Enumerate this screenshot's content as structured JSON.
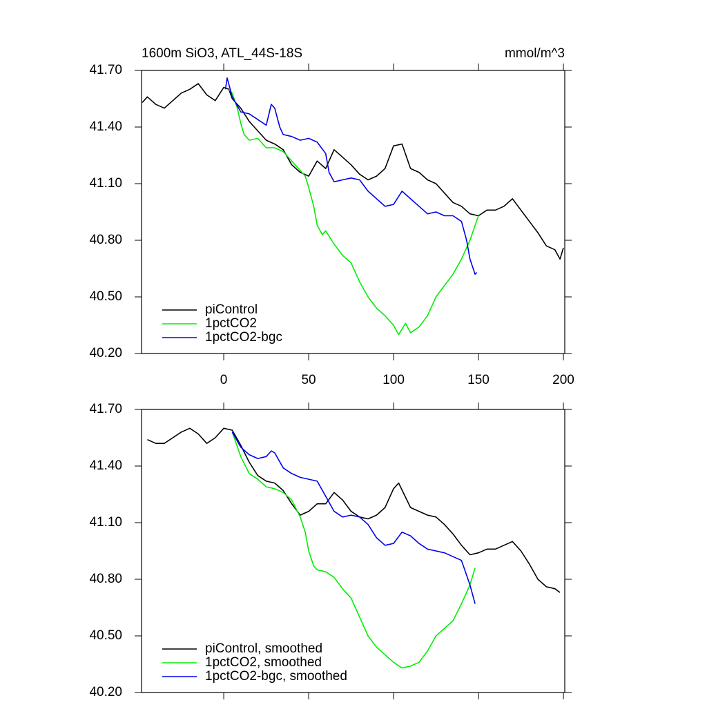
{
  "chart_data": [
    {
      "type": "line",
      "title": "1600m SiO3, ATL_44S-18S",
      "units": "mmol/m^3",
      "xlim": [
        -48.4,
        200.8
      ],
      "ylim": [
        40.2,
        41.7
      ],
      "xticks": [
        0,
        50,
        100,
        150,
        200
      ],
      "xtick_labels": true,
      "yticks": [
        {
          "value": 40.2,
          "label": "40.20"
        },
        {
          "value": 40.5,
          "label": "40.50"
        },
        {
          "value": 40.8,
          "label": "40.80"
        },
        {
          "value": 41.1,
          "label": "41.10"
        },
        {
          "value": 41.4,
          "label": "41.40"
        },
        {
          "value": 41.7,
          "label": "41.70"
        }
      ],
      "series": [
        {
          "name": "piControl",
          "color": "#000000",
          "x": [
            -48,
            -45,
            -40,
            -35,
            -30,
            -25,
            -20,
            -15,
            -10,
            -5,
            0,
            3,
            5,
            10,
            15,
            20,
            25,
            30,
            35,
            40,
            45,
            50,
            55,
            60,
            65,
            70,
            75,
            80,
            85,
            90,
            95,
            100,
            105,
            110,
            115,
            120,
            125,
            130,
            135,
            140,
            145,
            150,
            155,
            160,
            165,
            170,
            175,
            180,
            185,
            190,
            195,
            198,
            200
          ],
          "values": [
            41.53,
            41.56,
            41.52,
            41.5,
            41.54,
            41.58,
            41.6,
            41.63,
            41.57,
            41.54,
            41.61,
            41.6,
            41.55,
            41.5,
            41.43,
            41.38,
            41.33,
            41.31,
            41.28,
            41.2,
            41.16,
            41.14,
            41.22,
            41.18,
            41.28,
            41.24,
            41.2,
            41.15,
            41.12,
            41.14,
            41.18,
            41.3,
            41.31,
            41.18,
            41.16,
            41.12,
            41.1,
            41.05,
            41.0,
            40.98,
            40.94,
            40.93,
            40.96,
            40.96,
            40.98,
            41.02,
            40.96,
            40.9,
            40.84,
            40.77,
            40.75,
            40.7,
            40.76
          ]
        },
        {
          "name": "1pctCO2",
          "color": "#00ee00",
          "x": [
            3,
            5,
            8,
            10,
            12,
            15,
            20,
            25,
            30,
            35,
            40,
            45,
            48,
            50,
            53,
            55,
            58,
            60,
            65,
            70,
            75,
            80,
            85,
            90,
            95,
            100,
            103,
            107,
            110,
            115,
            120,
            125,
            130,
            135,
            140,
            145,
            150
          ],
          "values": [
            41.6,
            41.58,
            41.5,
            41.42,
            41.36,
            41.33,
            41.34,
            41.29,
            41.29,
            41.27,
            41.22,
            41.17,
            41.14,
            41.08,
            40.98,
            40.88,
            40.83,
            40.85,
            40.78,
            40.72,
            40.68,
            40.58,
            40.5,
            40.44,
            40.4,
            40.35,
            40.3,
            40.36,
            40.31,
            40.34,
            40.4,
            40.5,
            40.56,
            40.62,
            40.7,
            40.8,
            40.93
          ]
        },
        {
          "name": "1pctCO2-bgc",
          "color": "#0000ee",
          "x": [
            1,
            2,
            5,
            10,
            15,
            20,
            25,
            28,
            30,
            33,
            35,
            40,
            45,
            50,
            55,
            60,
            62,
            65,
            70,
            75,
            80,
            85,
            90,
            95,
            100,
            105,
            110,
            115,
            120,
            125,
            130,
            135,
            140,
            143,
            145,
            148,
            149
          ],
          "values": [
            41.6,
            41.66,
            41.56,
            41.48,
            41.47,
            41.44,
            41.41,
            41.52,
            41.5,
            41.4,
            41.36,
            41.35,
            41.33,
            41.34,
            41.32,
            41.26,
            41.16,
            41.11,
            41.12,
            41.13,
            41.12,
            41.06,
            41.02,
            40.98,
            40.99,
            41.06,
            41.02,
            40.98,
            40.94,
            40.95,
            40.93,
            40.93,
            40.9,
            40.8,
            40.7,
            40.62,
            40.63
          ]
        }
      ]
    },
    {
      "type": "line",
      "xlim": [
        -48.4,
        200.8
      ],
      "ylim": [
        40.2,
        41.7
      ],
      "xticks": [
        0,
        50,
        100,
        150,
        200
      ],
      "xtick_labels": false,
      "yticks": [
        {
          "value": 40.2,
          "label": "40.20"
        },
        {
          "value": 40.5,
          "label": "40.50"
        },
        {
          "value": 40.8,
          "label": "40.80"
        },
        {
          "value": 41.1,
          "label": "41.10"
        },
        {
          "value": 41.4,
          "label": "41.40"
        },
        {
          "value": 41.7,
          "label": "41.70"
        }
      ],
      "series": [
        {
          "name": "piControl, smoothed",
          "color": "#000000",
          "x": [
            -45,
            -40,
            -35,
            -30,
            -25,
            -20,
            -15,
            -10,
            -5,
            0,
            5,
            10,
            15,
            20,
            25,
            30,
            35,
            40,
            45,
            50,
            55,
            60,
            65,
            70,
            75,
            80,
            85,
            90,
            95,
            100,
            103,
            110,
            115,
            120,
            125,
            130,
            135,
            140,
            145,
            150,
            155,
            160,
            165,
            170,
            175,
            180,
            185,
            190,
            195,
            198
          ],
          "values": [
            41.54,
            41.52,
            41.52,
            41.55,
            41.58,
            41.6,
            41.57,
            41.52,
            41.55,
            41.6,
            41.59,
            41.51,
            41.42,
            41.35,
            41.32,
            41.31,
            41.27,
            41.2,
            41.14,
            41.16,
            41.2,
            41.2,
            41.26,
            41.22,
            41.16,
            41.13,
            41.12,
            41.14,
            41.18,
            41.28,
            41.31,
            41.18,
            41.16,
            41.14,
            41.13,
            41.09,
            41.04,
            40.98,
            40.93,
            40.94,
            40.96,
            40.96,
            40.98,
            41.0,
            40.95,
            40.88,
            40.8,
            40.76,
            40.75,
            40.73
          ]
        },
        {
          "name": "1pctCO2, smoothed",
          "color": "#00ee00",
          "x": [
            5,
            10,
            15,
            20,
            25,
            30,
            35,
            40,
            45,
            48,
            50,
            53,
            55,
            60,
            65,
            70,
            75,
            80,
            85,
            90,
            95,
            100,
            105,
            110,
            115,
            120,
            125,
            130,
            135,
            140,
            145,
            148
          ],
          "values": [
            41.58,
            41.45,
            41.36,
            41.33,
            41.29,
            41.28,
            41.26,
            41.22,
            41.13,
            41.05,
            40.95,
            40.87,
            40.85,
            40.84,
            40.81,
            40.75,
            40.7,
            40.6,
            40.5,
            40.44,
            40.4,
            40.36,
            40.33,
            40.34,
            40.36,
            40.42,
            40.5,
            40.54,
            40.58,
            40.67,
            40.77,
            40.86
          ]
        },
        {
          "name": "1pctCO2-bgc, smoothed",
          "color": "#0000ee",
          "x": [
            5,
            10,
            15,
            20,
            25,
            28,
            30,
            35,
            40,
            45,
            50,
            55,
            60,
            65,
            70,
            75,
            80,
            85,
            90,
            95,
            100,
            105,
            110,
            115,
            120,
            125,
            130,
            135,
            140,
            145,
            148
          ],
          "values": [
            41.58,
            41.5,
            41.46,
            41.44,
            41.45,
            41.48,
            41.47,
            41.39,
            41.36,
            41.34,
            41.33,
            41.32,
            41.24,
            41.16,
            41.13,
            41.14,
            41.13,
            41.09,
            41.02,
            40.98,
            40.99,
            41.05,
            41.03,
            40.99,
            40.96,
            40.95,
            40.94,
            40.92,
            40.9,
            40.77,
            40.67
          ]
        }
      ]
    }
  ]
}
